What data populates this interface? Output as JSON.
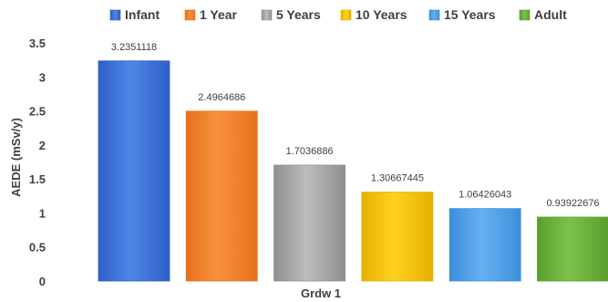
{
  "chart_data": {
    "type": "bar",
    "categories": [
      "Grdw 1"
    ],
    "xlabel": "Grdw 1",
    "ylabel": "AEDE (mSv/y)",
    "ylim": [
      0,
      3.5
    ],
    "yticks": [
      "0",
      "0.5",
      "1",
      "1.5",
      "2",
      "2.5",
      "3",
      "3.5"
    ],
    "grid": false,
    "legend_position": "top",
    "series": [
      {
        "name": "Infant",
        "values": [
          3.2351118
        ],
        "label": "3.2351118",
        "color": "#2E5FC9",
        "color_light": "#4F86E6"
      },
      {
        "name": "1 Year",
        "values": [
          2.4964686
        ],
        "label": "2.4964686",
        "color": "#E8701C",
        "color_light": "#F7923E"
      },
      {
        "name": "5 Years",
        "values": [
          1.7036886
        ],
        "label": "1.7036886",
        "color": "#8F8F8F",
        "color_light": "#BDBDBD"
      },
      {
        "name": "10 Years",
        "values": [
          1.30667445
        ],
        "label": "1.30667445",
        "color": "#E6B000",
        "color_light": "#FFD21F"
      },
      {
        "name": "15 Years",
        "values": [
          1.06426043
        ],
        "label": "1.06426043",
        "color": "#3C8EDB",
        "color_light": "#67B1F2"
      },
      {
        "name": "Adult",
        "values": [
          0.93922676
        ],
        "label": "0.93922676",
        "color": "#5A9E2E",
        "color_light": "#7CC24A"
      }
    ]
  }
}
